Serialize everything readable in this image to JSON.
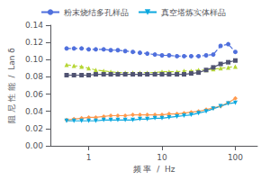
{
  "chart_data": {
    "type": "line",
    "xlabel": "频 率  /  Hz",
    "ylabel": "阻 尼 性 能  /  Lan δ",
    "log": "x",
    "xlim": [
      0.3,
      200
    ],
    "xticks": [
      1,
      10,
      100
    ],
    "ylim": [
      0,
      0.14
    ],
    "yticks": [
      {
        "value": 0,
        "label": "0.00"
      },
      0.02,
      0.04,
      0.06,
      0.08,
      {
        "value": 0.1,
        "label": "0.10"
      },
      0.12,
      0.14
    ],
    "grid": false,
    "legend": "upper left",
    "x": [
      0.5,
      0.63,
      0.8,
      1.0,
      1.25,
      1.6,
      2.0,
      2.5,
      3.15,
      4.0,
      5.0,
      6.3,
      8.0,
      10.0,
      12.5,
      16.0,
      20.0,
      25.0,
      31.5,
      40.0,
      50.0,
      63.0,
      80.0,
      100.0
    ],
    "series": [
      {
        "name": "粉末烧结多孔样品",
        "marker": "circle",
        "line_style": "dashed",
        "values": [
          0.113,
          0.113,
          0.113,
          0.112,
          0.112,
          0.112,
          0.111,
          0.111,
          0.11,
          0.109,
          0.108,
          0.107,
          0.106,
          0.105,
          0.105,
          0.104,
          0.104,
          0.104,
          0.104,
          0.105,
          0.106,
          0.116,
          0.118,
          0.109
        ]
      },
      {
        "marker": "triangle",
        "line_style": "dashed",
        "values": [
          0.094,
          0.093,
          0.092,
          0.09,
          0.088,
          0.087,
          0.086,
          0.085,
          0.085,
          0.085,
          0.085,
          0.085,
          0.085,
          0.086,
          0.086,
          0.086,
          0.087,
          0.087,
          0.088,
          0.088,
          0.089,
          0.09,
          0.091,
          0.092
        ]
      },
      {
        "marker": "square",
        "line_style": "solid",
        "values": [
          0.082,
          0.082,
          0.082,
          0.082,
          0.083,
          0.083,
          0.083,
          0.083,
          0.083,
          0.083,
          0.083,
          0.083,
          0.083,
          0.083,
          0.083,
          0.083,
          0.083,
          0.084,
          0.085,
          0.088,
          0.091,
          0.095,
          0.097,
          0.099
        ]
      },
      {
        "marker": "diamond",
        "line_style": "solid",
        "values": [
          0.03,
          0.031,
          0.032,
          0.033,
          0.033,
          0.034,
          0.035,
          0.035,
          0.035,
          0.036,
          0.036,
          0.036,
          0.036,
          0.036,
          0.037,
          0.037,
          0.038,
          0.039,
          0.04,
          0.042,
          0.044,
          0.046,
          0.05,
          0.055
        ]
      },
      {
        "name": "真空塔炼实体样品",
        "marker": "triangle_down",
        "line_style": "solid",
        "values": [
          0.029,
          0.029,
          0.029,
          0.029,
          0.029,
          0.03,
          0.03,
          0.03,
          0.03,
          0.03,
          0.031,
          0.031,
          0.032,
          0.032,
          0.033,
          0.034,
          0.035,
          0.036,
          0.038,
          0.04,
          0.043,
          0.046,
          0.049,
          0.05
        ]
      }
    ]
  }
}
